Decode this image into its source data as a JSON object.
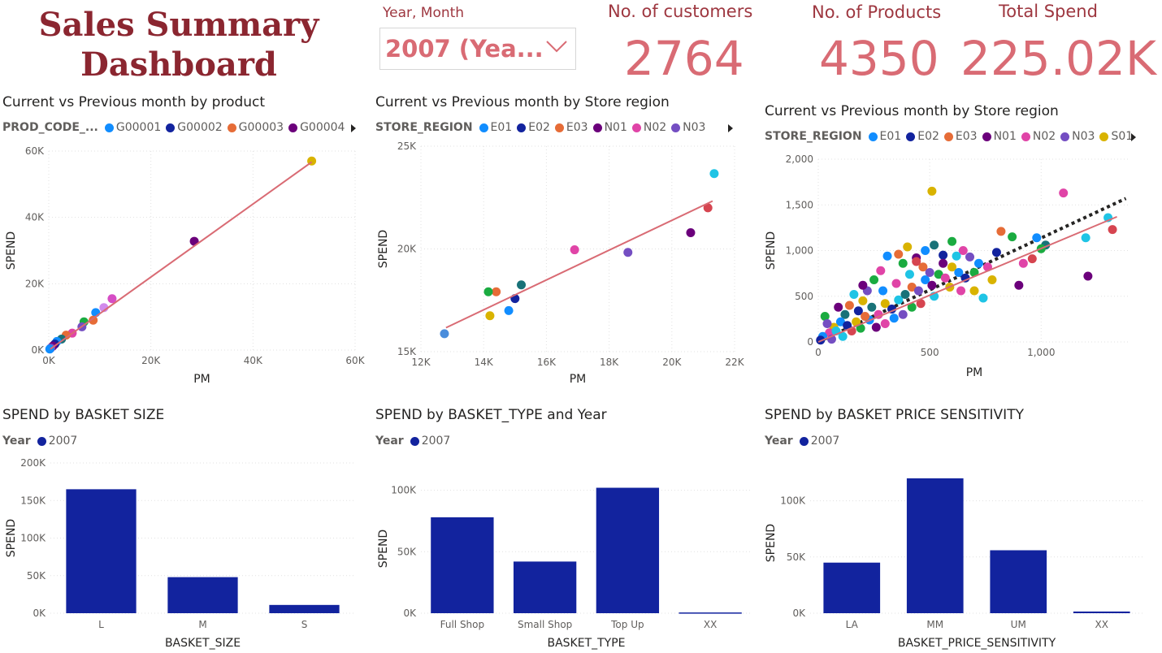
{
  "header": {
    "title_line1": "Sales Summary",
    "title_line2": "Dashboard"
  },
  "slicer": {
    "label": "Year, Month",
    "value": "2007 (Yea...",
    "icon": "chevron-down-icon"
  },
  "kpis": [
    {
      "label": "No. of customers",
      "value": "2764"
    },
    {
      "label": "No. of Products",
      "value": "4350"
    },
    {
      "label": "Total Spend",
      "value": "225.02K"
    }
  ],
  "colors": {
    "title": "#8B2630",
    "kpi_label": "#9E3740",
    "kpi_value": "#D96B74",
    "bar": "#12239E",
    "trend": "#D96B74"
  },
  "scatter1": {
    "title": "Current vs Previous month by product",
    "legend_title": "PROD_CODE_...",
    "legend": [
      {
        "name": "G00001",
        "color": "#118DFF"
      },
      {
        "name": "G00002",
        "color": "#12239E"
      },
      {
        "name": "G00003",
        "color": "#E66C37"
      },
      {
        "name": "G00004",
        "color": "#6B007B"
      }
    ]
  },
  "scatter2": {
    "title": "Current vs Previous month by Store region",
    "legend_title": "STORE_REGION",
    "legend": [
      {
        "name": "E01",
        "color": "#118DFF"
      },
      {
        "name": "E02",
        "color": "#12239E"
      },
      {
        "name": "E03",
        "color": "#E66C37"
      },
      {
        "name": "N01",
        "color": "#6B007B"
      },
      {
        "name": "N02",
        "color": "#E044A7"
      },
      {
        "name": "N03",
        "color": "#744EC2"
      }
    ]
  },
  "scatter3": {
    "title": "Current vs Previous month by Store region",
    "legend_title": "STORE_REGION",
    "legend": [
      {
        "name": "E01",
        "color": "#118DFF"
      },
      {
        "name": "E02",
        "color": "#12239E"
      },
      {
        "name": "E03",
        "color": "#E66C37"
      },
      {
        "name": "N01",
        "color": "#6B007B"
      },
      {
        "name": "N02",
        "color": "#E044A7"
      },
      {
        "name": "N03",
        "color": "#744EC2"
      },
      {
        "name": "S01",
        "color": "#D9B300"
      }
    ]
  },
  "bar1": {
    "title": "SPEND by BASKET SIZE",
    "legend_title": "Year",
    "legend": [
      {
        "name": "2007",
        "color": "#12239E"
      }
    ]
  },
  "bar2": {
    "title": "SPEND by BASKET_TYPE and Year",
    "legend_title": "Year",
    "legend": [
      {
        "name": "2007",
        "color": "#12239E"
      }
    ]
  },
  "bar3": {
    "title": "SPEND by BASKET PRICE SENSITIVITY",
    "legend_title": "Year",
    "legend": [
      {
        "name": "2007",
        "color": "#12239E"
      }
    ]
  },
  "chart_data": [
    {
      "type": "scatter",
      "xlabel": "PM",
      "ylabel": "SPEND",
      "xlim": [
        0,
        60000
      ],
      "ylim": [
        0,
        60000
      ],
      "x_ticks": [
        "0K",
        "20K",
        "40K",
        "60K"
      ],
      "y_ticks": [
        "0K",
        "20K",
        "40K",
        "60K"
      ],
      "grid": true,
      "trend_line": [
        [
          300,
          300
        ],
        [
          51500,
          56700
        ]
      ],
      "points": [
        {
          "x": 51500,
          "y": 57000,
          "color": "#D9B300"
        },
        {
          "x": 28500,
          "y": 32800,
          "color": "#6B007B"
        },
        {
          "x": 12400,
          "y": 15500,
          "color": "#D64DC5"
        },
        {
          "x": 10800,
          "y": 12800,
          "color": "#D18AEC"
        },
        {
          "x": 9200,
          "y": 11300,
          "color": "#118DFF"
        },
        {
          "x": 8700,
          "y": 9000,
          "color": "#E66C37"
        },
        {
          "x": 6900,
          "y": 8500,
          "color": "#1AAB40"
        },
        {
          "x": 6500,
          "y": 7000,
          "color": "#744EC2"
        },
        {
          "x": 4600,
          "y": 5100,
          "color": "#E044A7"
        },
        {
          "x": 3400,
          "y": 4500,
          "color": "#E66C37"
        },
        {
          "x": 2500,
          "y": 3300,
          "color": "#197278"
        },
        {
          "x": 1600,
          "y": 2600,
          "color": "#118DFF"
        },
        {
          "x": 1200,
          "y": 1800,
          "color": "#12239E"
        },
        {
          "x": 800,
          "y": 1200,
          "color": "#6B007B"
        },
        {
          "x": 400,
          "y": 600,
          "color": "#744EC2"
        },
        {
          "x": 200,
          "y": 300,
          "color": "#118DFF"
        }
      ]
    },
    {
      "type": "scatter",
      "xlabel": "PM",
      "ylabel": "SPEND",
      "xlim": [
        12000,
        22000
      ],
      "ylim": [
        14000,
        26000
      ],
      "x_ticks": [
        "12K",
        "14K",
        "16K",
        "18K",
        "20K",
        "22K"
      ],
      "y_ticks": [
        "15K",
        "20K",
        "25K"
      ],
      "grid": true,
      "trend_line": [
        [
          12800,
          15400
        ],
        [
          21300,
          22800
        ]
      ],
      "points": [
        {
          "x": 21350,
          "y": 24400,
          "color": "#1FC4E5"
        },
        {
          "x": 21150,
          "y": 22400,
          "color": "#D64550"
        },
        {
          "x": 20600,
          "y": 20950,
          "color": "#6B007B"
        },
        {
          "x": 18600,
          "y": 19800,
          "color": "#744EC2"
        },
        {
          "x": 16900,
          "y": 19950,
          "color": "#E044A7"
        },
        {
          "x": 15200,
          "y": 17900,
          "color": "#197278"
        },
        {
          "x": 15000,
          "y": 17100,
          "color": "#12239E"
        },
        {
          "x": 14800,
          "y": 16400,
          "color": "#118DFF"
        },
        {
          "x": 14400,
          "y": 17500,
          "color": "#E66C37"
        },
        {
          "x": 14150,
          "y": 17500,
          "color": "#1AAB40"
        },
        {
          "x": 14200,
          "y": 16100,
          "color": "#D9B300"
        },
        {
          "x": 12750,
          "y": 15050,
          "color": "#4A8DDC"
        }
      ]
    },
    {
      "type": "scatter",
      "xlabel": "PM",
      "ylabel": "SPEND",
      "xlim": [
        0,
        1400
      ],
      "ylim": [
        0,
        2000
      ],
      "x_ticks": [
        "0",
        "500",
        "1,000"
      ],
      "y_ticks": [
        "0",
        "500",
        "1,000",
        "1,500",
        "2,000"
      ],
      "grid": true,
      "trend_line": [
        [
          0,
          0
        ],
        [
          1340,
          1370
        ]
      ],
      "reference_line": [
        [
          0,
          0
        ],
        [
          1380,
          1570
        ]
      ],
      "points": [
        {
          "x": 510,
          "y": 1650,
          "color": "#D9B300"
        },
        {
          "x": 1100,
          "y": 1630,
          "color": "#E044A7"
        },
        {
          "x": 1300,
          "y": 1360,
          "color": "#1FC4E5"
        },
        {
          "x": 1320,
          "y": 1230,
          "color": "#D64550"
        },
        {
          "x": 1200,
          "y": 1140,
          "color": "#1FC4E5"
        },
        {
          "x": 1210,
          "y": 720,
          "color": "#6B007B"
        },
        {
          "x": 1020,
          "y": 1060,
          "color": "#197278"
        },
        {
          "x": 1000,
          "y": 1020,
          "color": "#1AAB40"
        },
        {
          "x": 960,
          "y": 910,
          "color": "#D64550"
        },
        {
          "x": 920,
          "y": 860,
          "color": "#E044A7"
        },
        {
          "x": 980,
          "y": 1140,
          "color": "#118DFF"
        },
        {
          "x": 820,
          "y": 1210,
          "color": "#E66C37"
        },
        {
          "x": 870,
          "y": 1150,
          "color": "#1AAB40"
        },
        {
          "x": 900,
          "y": 620,
          "color": "#6B007B"
        },
        {
          "x": 780,
          "y": 680,
          "color": "#D9B300"
        },
        {
          "x": 740,
          "y": 480,
          "color": "#1FC4E5"
        },
        {
          "x": 700,
          "y": 560,
          "color": "#D9B300"
        },
        {
          "x": 720,
          "y": 860,
          "color": "#118DFF"
        },
        {
          "x": 680,
          "y": 930,
          "color": "#744EC2"
        },
        {
          "x": 650,
          "y": 1000,
          "color": "#E044A7"
        },
        {
          "x": 600,
          "y": 1100,
          "color": "#1AAB40"
        },
        {
          "x": 560,
          "y": 950,
          "color": "#12239E"
        },
        {
          "x": 520,
          "y": 1060,
          "color": "#197278"
        },
        {
          "x": 480,
          "y": 1000,
          "color": "#118DFF"
        },
        {
          "x": 440,
          "y": 920,
          "color": "#6B007B"
        },
        {
          "x": 400,
          "y": 1040,
          "color": "#D9B300"
        },
        {
          "x": 360,
          "y": 960,
          "color": "#E66C37"
        },
        {
          "x": 310,
          "y": 940,
          "color": "#118DFF"
        },
        {
          "x": 280,
          "y": 780,
          "color": "#E044A7"
        },
        {
          "x": 250,
          "y": 680,
          "color": "#1AAB40"
        },
        {
          "x": 220,
          "y": 560,
          "color": "#744EC2"
        },
        {
          "x": 200,
          "y": 450,
          "color": "#D9B300"
        },
        {
          "x": 180,
          "y": 340,
          "color": "#12239E"
        },
        {
          "x": 160,
          "y": 520,
          "color": "#1FC4E5"
        },
        {
          "x": 140,
          "y": 400,
          "color": "#E66C37"
        },
        {
          "x": 120,
          "y": 300,
          "color": "#197278"
        },
        {
          "x": 100,
          "y": 220,
          "color": "#118DFF"
        },
        {
          "x": 90,
          "y": 380,
          "color": "#6B007B"
        },
        {
          "x": 70,
          "y": 160,
          "color": "#D9B300"
        },
        {
          "x": 50,
          "y": 100,
          "color": "#E044A7"
        },
        {
          "x": 30,
          "y": 280,
          "color": "#1AAB40"
        },
        {
          "x": 20,
          "y": 60,
          "color": "#118DFF"
        },
        {
          "x": 10,
          "y": 20,
          "color": "#12239E"
        },
        {
          "x": 60,
          "y": 30,
          "color": "#744EC2"
        },
        {
          "x": 110,
          "y": 60,
          "color": "#1FC4E5"
        },
        {
          "x": 150,
          "y": 120,
          "color": "#D64550"
        },
        {
          "x": 190,
          "y": 150,
          "color": "#1AAB40"
        },
        {
          "x": 230,
          "y": 240,
          "color": "#118DFF"
        },
        {
          "x": 270,
          "y": 300,
          "color": "#E044A7"
        },
        {
          "x": 300,
          "y": 420,
          "color": "#D9B300"
        },
        {
          "x": 330,
          "y": 360,
          "color": "#12239E"
        },
        {
          "x": 360,
          "y": 460,
          "color": "#1FC4E5"
        },
        {
          "x": 390,
          "y": 520,
          "color": "#197278"
        },
        {
          "x": 420,
          "y": 600,
          "color": "#E66C37"
        },
        {
          "x": 450,
          "y": 560,
          "color": "#744EC2"
        },
        {
          "x": 480,
          "y": 680,
          "color": "#118DFF"
        },
        {
          "x": 510,
          "y": 620,
          "color": "#6B007B"
        },
        {
          "x": 540,
          "y": 740,
          "color": "#1AAB40"
        },
        {
          "x": 570,
          "y": 700,
          "color": "#E044A7"
        },
        {
          "x": 600,
          "y": 820,
          "color": "#D9B300"
        },
        {
          "x": 630,
          "y": 760,
          "color": "#118DFF"
        },
        {
          "x": 660,
          "y": 700,
          "color": "#12239E"
        },
        {
          "x": 520,
          "y": 500,
          "color": "#1FC4E5"
        },
        {
          "x": 460,
          "y": 420,
          "color": "#D64550"
        },
        {
          "x": 420,
          "y": 380,
          "color": "#1AAB40"
        },
        {
          "x": 380,
          "y": 300,
          "color": "#744EC2"
        },
        {
          "x": 340,
          "y": 260,
          "color": "#118DFF"
        },
        {
          "x": 300,
          "y": 200,
          "color": "#E044A7"
        },
        {
          "x": 260,
          "y": 160,
          "color": "#6B007B"
        },
        {
          "x": 240,
          "y": 380,
          "color": "#197278"
        },
        {
          "x": 210,
          "y": 280,
          "color": "#E66C37"
        },
        {
          "x": 170,
          "y": 220,
          "color": "#D9B300"
        },
        {
          "x": 130,
          "y": 180,
          "color": "#12239E"
        },
        {
          "x": 80,
          "y": 120,
          "color": "#1FC4E5"
        },
        {
          "x": 40,
          "y": 200,
          "color": "#744EC2"
        },
        {
          "x": 560,
          "y": 860,
          "color": "#6B007B"
        },
        {
          "x": 620,
          "y": 940,
          "color": "#1FC4E5"
        },
        {
          "x": 700,
          "y": 760,
          "color": "#1AAB40"
        },
        {
          "x": 760,
          "y": 820,
          "color": "#E044A7"
        },
        {
          "x": 800,
          "y": 980,
          "color": "#12239E"
        },
        {
          "x": 350,
          "y": 640,
          "color": "#E044A7"
        },
        {
          "x": 410,
          "y": 740,
          "color": "#1FC4E5"
        },
        {
          "x": 470,
          "y": 820,
          "color": "#E66C37"
        },
        {
          "x": 290,
          "y": 560,
          "color": "#118DFF"
        },
        {
          "x": 200,
          "y": 620,
          "color": "#6B007B"
        },
        {
          "x": 380,
          "y": 860,
          "color": "#1AAB40"
        },
        {
          "x": 440,
          "y": 880,
          "color": "#D64550"
        },
        {
          "x": 500,
          "y": 760,
          "color": "#744EC2"
        },
        {
          "x": 590,
          "y": 600,
          "color": "#D9B300"
        },
        {
          "x": 640,
          "y": 560,
          "color": "#E044A7"
        }
      ]
    },
    {
      "type": "bar",
      "xlabel": "BASKET_SIZE",
      "ylabel": "SPEND",
      "categories": [
        "L",
        "M",
        "S"
      ],
      "values": [
        165000,
        48000,
        11000
      ],
      "ylim": [
        0,
        200000
      ],
      "y_ticks": [
        "0K",
        "50K",
        "100K",
        "150K",
        "200K"
      ],
      "series_name": "2007"
    },
    {
      "type": "bar",
      "xlabel": "BASKET_TYPE",
      "ylabel": "SPEND",
      "categories": [
        "Full Shop",
        "Small Shop",
        "Top Up",
        "XX"
      ],
      "values": [
        78000,
        42000,
        102000,
        600
      ],
      "ylim": [
        0,
        105000
      ],
      "y_ticks": [
        "0K",
        "50K",
        "100K"
      ],
      "series_name": "2007"
    },
    {
      "type": "bar",
      "xlabel": "BASKET_PRICE_SENSITIVITY",
      "ylabel": "SPEND",
      "categories": [
        "LA",
        "MM",
        "UM",
        "XX"
      ],
      "values": [
        45000,
        120000,
        56000,
        1500
      ],
      "ylim": [
        0,
        125000
      ],
      "y_ticks": [
        "0K",
        "50K",
        "100K"
      ],
      "series_name": "2007"
    }
  ]
}
